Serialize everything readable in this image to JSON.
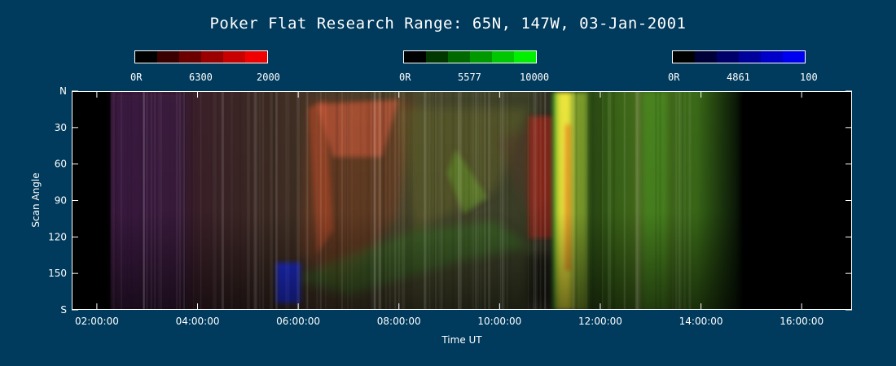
{
  "page": {
    "title": "Poker Flat Research Range: 65N, 147W, 03-Jan-2001"
  },
  "colorbars": [
    {
      "name": "red",
      "wavelength": "6300",
      "min_label": "0R",
      "max_label": "2000",
      "colors": [
        "#000000",
        "#3a0000",
        "#6a0000",
        "#9a0000",
        "#c80000",
        "#f00000"
      ]
    },
    {
      "name": "green",
      "wavelength": "5577",
      "min_label": "0R",
      "max_label": "10000",
      "colors": [
        "#000000",
        "#003800",
        "#006a00",
        "#009a00",
        "#00c800",
        "#00f000"
      ]
    },
    {
      "name": "blue",
      "wavelength": "4861",
      "min_label": "0R",
      "max_label": "100",
      "colors": [
        "#000000",
        "#000038",
        "#00006a",
        "#00009a",
        "#0000c8",
        "#0000f0"
      ]
    }
  ],
  "chart_data": {
    "type": "heatmap",
    "title": "Poker Flat Research Range: 65N, 147W, 03-Jan-2001",
    "xlabel": "Time UT",
    "ylabel": "Scan Angle",
    "xlim": [
      1.5,
      17.0
    ],
    "ylim": [
      0,
      180
    ],
    "x_ticks": [
      {
        "value": 2,
        "label": "02:00:00"
      },
      {
        "value": 4,
        "label": "04:00:00"
      },
      {
        "value": 6,
        "label": "06:00:00"
      },
      {
        "value": 8,
        "label": "08:00:00"
      },
      {
        "value": 10,
        "label": "10:00:00"
      },
      {
        "value": 12,
        "label": "12:00:00"
      },
      {
        "value": 14,
        "label": "14:00:00"
      },
      {
        "value": 16,
        "label": "16:00:00"
      }
    ],
    "y_ticks": [
      {
        "value": 0,
        "label": "N"
      },
      {
        "value": 30,
        "label": "30"
      },
      {
        "value": 60,
        "label": "60"
      },
      {
        "value": 90,
        "label": "90"
      },
      {
        "value": 120,
        "label": "120"
      },
      {
        "value": 150,
        "label": "150"
      },
      {
        "value": 180,
        "label": "S"
      }
    ],
    "data_start": 2.3,
    "data_end": 14.0
  }
}
